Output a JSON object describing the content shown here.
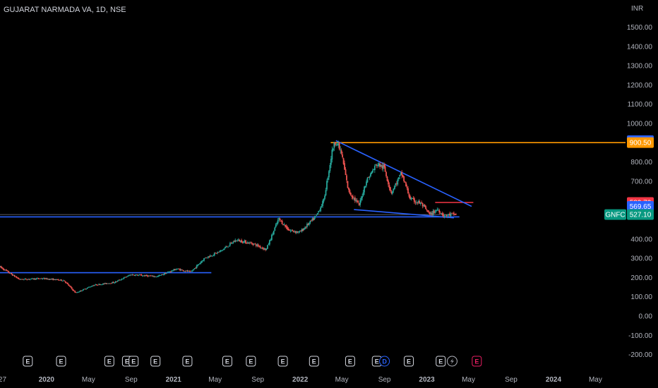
{
  "header": {
    "symbol_title": "GUJARAT NARMADA VA, 1D, NSE",
    "currency": "INR"
  },
  "colors": {
    "background": "#000000",
    "up": "#26a69a",
    "down": "#ef5350",
    "trendline_blue": "#2962ff",
    "resistance_orange": "#ff9800",
    "resistance_red": "#f23645",
    "ticker_green": "#089981"
  },
  "chart_data": {
    "type": "candlestick",
    "symbol": "GNFC",
    "interval": "1D",
    "exchange": "NSE",
    "x_tick_labels": [
      "27",
      "2020",
      "May",
      "Sep",
      "2021",
      "May",
      "Sep",
      "2022",
      "May",
      "Sep",
      "2023",
      "May",
      "Sep",
      "2024",
      "May"
    ],
    "y_tick_labels": [
      "1500.00",
      "1400.00",
      "1300.00",
      "1200.00",
      "1100.00",
      "1000.00",
      "800.00",
      "700.00",
      "600.00",
      "400.00",
      "300.00",
      "200.00",
      "100.00",
      "0.00",
      "-100.00",
      "-200.00"
    ],
    "ylim": [
      -200,
      1500
    ],
    "price_trend": [
      {
        "date": "2019-08-20",
        "price": 255
      },
      {
        "date": "2019-10-15",
        "price": 190
      },
      {
        "date": "2019-12-20",
        "price": 195
      },
      {
        "date": "2020-02-20",
        "price": 185
      },
      {
        "date": "2020-03-25",
        "price": 120
      },
      {
        "date": "2020-05-15",
        "price": 160
      },
      {
        "date": "2020-07-15",
        "price": 175
      },
      {
        "date": "2020-08-31",
        "price": 215
      },
      {
        "date": "2020-11-15",
        "price": 205
      },
      {
        "date": "2021-01-10",
        "price": 245
      },
      {
        "date": "2021-02-20",
        "price": 228
      },
      {
        "date": "2021-03-31",
        "price": 300
      },
      {
        "date": "2021-05-15",
        "price": 335
      },
      {
        "date": "2021-06-30",
        "price": 395
      },
      {
        "date": "2021-08-20",
        "price": 375
      },
      {
        "date": "2021-09-25",
        "price": 345
      },
      {
        "date": "2021-10-31",
        "price": 505
      },
      {
        "date": "2021-11-30",
        "price": 445
      },
      {
        "date": "2021-12-31",
        "price": 435
      },
      {
        "date": "2022-02-15",
        "price": 515
      },
      {
        "date": "2022-03-10",
        "price": 600
      },
      {
        "date": "2022-04-05",
        "price": 875
      },
      {
        "date": "2022-04-14",
        "price": 910
      },
      {
        "date": "2022-04-30",
        "price": 845
      },
      {
        "date": "2022-05-20",
        "price": 650
      },
      {
        "date": "2022-06-20",
        "price": 575
      },
      {
        "date": "2022-07-10",
        "price": 700
      },
      {
        "date": "2022-08-10",
        "price": 790
      },
      {
        "date": "2022-08-31",
        "price": 770
      },
      {
        "date": "2022-09-20",
        "price": 640
      },
      {
        "date": "2022-10-20",
        "price": 740
      },
      {
        "date": "2022-11-15",
        "price": 605
      },
      {
        "date": "2022-12-15",
        "price": 585
      },
      {
        "date": "2023-01-10",
        "price": 525
      },
      {
        "date": "2023-02-01",
        "price": 555
      },
      {
        "date": "2023-02-20",
        "price": 520
      },
      {
        "date": "2023-03-15",
        "price": 528
      },
      {
        "date": "2023-03-27",
        "price": 527.1
      }
    ],
    "last_price": "527.10",
    "price_labels": [
      {
        "value": 910.9,
        "text": "910.90",
        "color": "#2962ff"
      },
      {
        "value": 900.5,
        "text": "900.50",
        "color": "#ff9800"
      },
      {
        "value": 589.7,
        "text": "589.70",
        "color": "#f23645"
      },
      {
        "value": 569.65,
        "text": "569.65",
        "color": "#2962ff"
      }
    ],
    "drawings": [
      {
        "kind": "horizontal-ray",
        "price": 900.5,
        "from": "2022-03-30",
        "color": "#ff9800"
      },
      {
        "kind": "horizontal-segment",
        "price": 589.7,
        "from": "2023-01-25",
        "to": "2023-05-15",
        "color": "#f23645"
      },
      {
        "kind": "horizontal-segment",
        "price": 527.1,
        "from": "2019-08-20",
        "to": "2023-03-27",
        "color": "#787b86",
        "thin": true
      },
      {
        "kind": "trend-line",
        "from": [
          "2022-04-14",
          910.9
        ],
        "to": [
          "2023-05-10",
          569.65
        ],
        "color": "#2962ff"
      },
      {
        "kind": "trend-line",
        "from": [
          "2022-06-05",
          553
        ],
        "to": [
          "2023-03-20",
          510
        ],
        "color": "#2962ff"
      },
      {
        "kind": "trend-line",
        "from": [
          "2019-08-20",
          515
        ],
        "to": [
          "2023-04-05",
          515
        ],
        "color": "#2962ff"
      },
      {
        "kind": "trend-line",
        "from": [
          "2019-08-20",
          225
        ],
        "to": [
          "2021-04-20",
          225
        ],
        "color": "#2962ff"
      }
    ],
    "events": [
      {
        "type": "E",
        "date": "2019-11-08",
        "color": "#d1d4dc"
      },
      {
        "type": "E",
        "date": "2020-02-12",
        "color": "#d1d4dc"
      },
      {
        "type": "E",
        "date": "2020-06-30",
        "color": "#d1d4dc"
      },
      {
        "type": "E",
        "date": "2020-08-20",
        "color": "#d1d4dc"
      },
      {
        "type": "E",
        "date": "2020-09-08",
        "color": "#d1d4dc"
      },
      {
        "type": "E",
        "date": "2020-11-10",
        "color": "#d1d4dc"
      },
      {
        "type": "E",
        "date": "2021-02-10",
        "color": "#d1d4dc"
      },
      {
        "type": "E",
        "date": "2021-06-05",
        "color": "#d1d4dc"
      },
      {
        "type": "E",
        "date": "2021-08-12",
        "color": "#d1d4dc"
      },
      {
        "type": "E",
        "date": "2021-11-12",
        "color": "#d1d4dc"
      },
      {
        "type": "E",
        "date": "2022-02-10",
        "color": "#d1d4dc"
      },
      {
        "type": "E",
        "date": "2022-05-25",
        "color": "#d1d4dc"
      },
      {
        "type": "E",
        "date": "2022-08-10",
        "color": "#d1d4dc"
      },
      {
        "type": "D",
        "date": "2022-09-01",
        "color": "#2962ff"
      },
      {
        "type": "E",
        "date": "2022-11-10",
        "color": "#d1d4dc"
      },
      {
        "type": "E",
        "date": "2023-02-10",
        "color": "#d1d4dc"
      },
      {
        "type": "split",
        "date": "2023-03-15",
        "color": "#b2b5be"
      },
      {
        "type": "E",
        "date": "2023-05-25",
        "color": "#e91e63"
      }
    ]
  }
}
